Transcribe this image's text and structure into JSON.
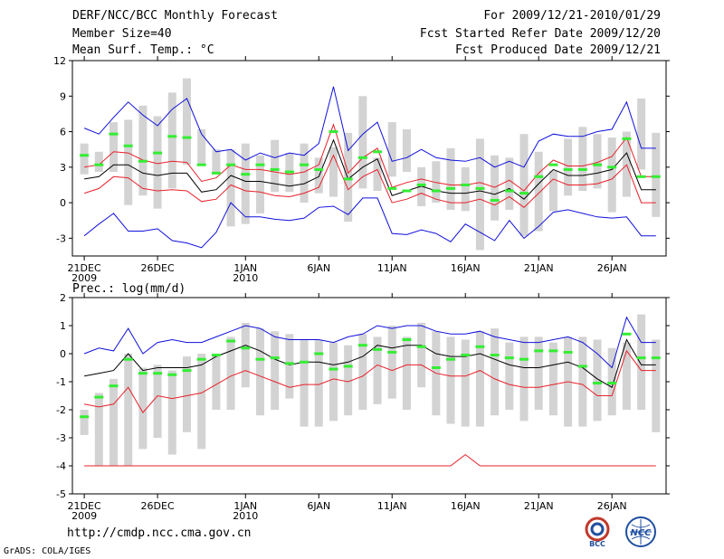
{
  "header": {
    "title": "DERF/NCC/BCC Monthly Forecast",
    "member_size": "Member Size=40",
    "variable": "Mean Surf. Temp.: °C",
    "period": "For 2009/12/21-2010/01/29",
    "fcst_started": "Fcst Started Refer Date 2009/12/20",
    "fcst_produced": "Fcst Produced Date 2009/12/21"
  },
  "footer": {
    "url": "http://cmdp.ncc.cma.gov.cn",
    "credit": "GrADS: COLA/IGES",
    "logo_bcc": "BCC",
    "logo_ncc": "NCC"
  },
  "colors": {
    "box": "#d3d3d3",
    "green": "#33ee33",
    "red": "#e8202a",
    "blue": "#1010dd",
    "mean": "#000000"
  },
  "chart_data": [
    {
      "type": "box-ensemble",
      "title": "",
      "ylabel": "°C",
      "ylim": [
        -4.5,
        12
      ],
      "yticks": [
        12,
        9,
        6,
        3,
        0,
        -3
      ],
      "x_start_day": 1,
      "xticks": [
        {
          "day": 1,
          "label": "21DEC",
          "sub": "2009"
        },
        {
          "day": 6,
          "label": "26DEC",
          "sub": ""
        },
        {
          "day": 12,
          "label": "1JAN",
          "sub": "2010"
        },
        {
          "day": 17,
          "label": "6JAN",
          "sub": ""
        },
        {
          "day": 22,
          "label": "11JAN",
          "sub": ""
        },
        {
          "day": 27,
          "label": "16JAN",
          "sub": ""
        },
        {
          "day": 32,
          "label": "21JAN",
          "sub": ""
        },
        {
          "day": 37,
          "label": "26JAN",
          "sub": ""
        }
      ],
      "box_low": [
        2.4,
        2.6,
        2.6,
        -0.2,
        0.6,
        -0.5,
        1.2,
        3.2,
        3.2,
        2.4,
        -2.0,
        -1.8,
        -0.9,
        0.9,
        0.9,
        0.0,
        0.8,
        0.5,
        -1.6,
        1.2,
        1.0,
        2.2,
        2.6,
        -0.3,
        0.0,
        -0.6,
        -0.7,
        -4.0,
        -1.5,
        -0.6,
        -2.8,
        -2.4,
        -0.7,
        0.6,
        1.0,
        1.2,
        -0.8,
        0.5,
        2.8,
        -1.2
      ],
      "box_high": [
        5.0,
        4.3,
        6.8,
        7.0,
        8.2,
        7.3,
        9.3,
        10.5,
        6.2,
        4.5,
        4.5,
        5.0,
        4.0,
        5.3,
        4.2,
        5.0,
        3.8,
        4.7,
        5.9,
        9.0,
        3.8,
        6.8,
        6.2,
        3.0,
        3.5,
        4.6,
        3.0,
        5.4,
        4.0,
        3.8,
        5.8,
        4.3,
        2.7,
        5.4,
        6.4,
        5.8,
        5.5,
        6.0,
        8.8,
        5.9
      ],
      "green": [
        4.0,
        3.2,
        5.8,
        4.8,
        3.5,
        4.2,
        5.6,
        5.5,
        3.2,
        2.5,
        3.2,
        2.4,
        3.2,
        2.8,
        2.6,
        3.2,
        2.8,
        6.0,
        2.0,
        3.8,
        4.3,
        1.2,
        1.0,
        1.5,
        1.0,
        1.2,
        1.5,
        1.2,
        0.2,
        1.0,
        0.8,
        2.2,
        3.2,
        2.8,
        2.8,
        3.2,
        3.0,
        5.4,
        2.2,
        2.2
      ],
      "mean": [
        2.0,
        2.2,
        3.2,
        3.2,
        2.5,
        2.3,
        2.5,
        2.5,
        0.9,
        1.1,
        2.3,
        1.8,
        1.8,
        1.6,
        1.4,
        1.6,
        2.2,
        5.3,
        2.0,
        3.0,
        3.7,
        0.6,
        1.0,
        1.4,
        1.0,
        0.8,
        0.8,
        1.0,
        0.7,
        1.2,
        0.3,
        1.6,
        2.8,
        2.3,
        2.3,
        2.5,
        2.8,
        4.2,
        1.1,
        1.1
      ],
      "mean_plus_sd": [
        3.0,
        3.2,
        4.3,
        4.2,
        3.6,
        3.3,
        3.5,
        3.4,
        1.8,
        2.1,
        3.2,
        2.8,
        2.8,
        2.6,
        2.4,
        2.6,
        3.2,
        6.6,
        2.5,
        3.8,
        4.6,
        1.3,
        1.7,
        2.0,
        1.7,
        1.5,
        1.5,
        1.7,
        1.3,
        1.9,
        1.0,
        2.5,
        3.6,
        3.1,
        3.1,
        3.4,
        3.9,
        5.5,
        2.2,
        2.2
      ],
      "mean_minus_sd": [
        0.8,
        1.2,
        2.2,
        2.1,
        1.2,
        1.0,
        1.1,
        1.0,
        0.1,
        0.3,
        1.5,
        1.0,
        0.9,
        0.6,
        0.5,
        0.8,
        1.3,
        4.0,
        1.1,
        2.2,
        2.8,
        0.0,
        0.3,
        0.8,
        0.3,
        0.0,
        0.0,
        0.3,
        -0.2,
        0.5,
        -0.4,
        0.8,
        2.0,
        1.5,
        1.5,
        1.6,
        2.0,
        3.2,
        0.0,
        0.0
      ],
      "max": [
        6.3,
        5.8,
        7.2,
        8.5,
        7.4,
        6.5,
        7.9,
        8.8,
        5.8,
        4.3,
        4.5,
        3.6,
        4.2,
        3.8,
        4.2,
        4.0,
        5.0,
        9.8,
        4.4,
        5.8,
        6.8,
        3.5,
        3.8,
        4.5,
        3.8,
        3.6,
        3.5,
        3.8,
        3.0,
        3.5,
        3.0,
        5.2,
        5.8,
        5.6,
        5.6,
        6.0,
        6.2,
        8.5,
        4.6,
        4.6
      ],
      "min": [
        -2.8,
        -1.8,
        -0.9,
        -2.4,
        -2.4,
        -2.2,
        -3.2,
        -3.4,
        -3.8,
        -2.5,
        0.0,
        -1.2,
        -1.2,
        -1.4,
        -1.5,
        -1.3,
        -0.4,
        -0.3,
        -1.0,
        0.4,
        0.4,
        -2.6,
        -2.7,
        -2.3,
        -2.6,
        -3.3,
        -1.8,
        -2.5,
        -3.2,
        -1.5,
        -3.0,
        -2.0,
        -0.8,
        -0.6,
        -0.9,
        -1.2,
        -1.3,
        -1.2,
        -2.8,
        -2.8
      ]
    },
    {
      "type": "box-ensemble",
      "title": "Prec.: log(mm/d)",
      "ylabel": "log(mm/d)",
      "ylim": [
        -5,
        2
      ],
      "yticks": [
        2,
        1,
        0,
        -1,
        -2,
        -3,
        -4,
        -5
      ],
      "x_start_day": 1,
      "xticks": [
        {
          "day": 1,
          "label": "21DEC",
          "sub": "2009"
        },
        {
          "day": 6,
          "label": "26DEC",
          "sub": ""
        },
        {
          "day": 12,
          "label": "1JAN",
          "sub": "2010"
        },
        {
          "day": 17,
          "label": "6JAN",
          "sub": ""
        },
        {
          "day": 22,
          "label": "11JAN",
          "sub": ""
        },
        {
          "day": 27,
          "label": "16JAN",
          "sub": ""
        },
        {
          "day": 32,
          "label": "21JAN",
          "sub": ""
        },
        {
          "day": 37,
          "label": "26JAN",
          "sub": ""
        }
      ],
      "box_low": [
        -2.9,
        -4.0,
        -4.0,
        -4.0,
        -3.4,
        -3.0,
        -3.6,
        -2.8,
        -3.4,
        -2.0,
        -2.0,
        -1.2,
        -2.2,
        -2.0,
        -1.6,
        -2.6,
        -2.6,
        -2.4,
        -2.2,
        -2.0,
        -1.8,
        -1.6,
        -2.0,
        -1.2,
        -2.2,
        -2.5,
        -2.6,
        -2.6,
        -2.2,
        -2.0,
        -2.4,
        -2.0,
        -2.2,
        -2.6,
        -2.6,
        -2.4,
        -2.2,
        -2.0,
        -2.0,
        -2.8
      ],
      "box_high": [
        -2.0,
        -1.4,
        -0.9,
        0.0,
        -0.5,
        -0.4,
        -0.6,
        -0.1,
        0.0,
        0.0,
        0.6,
        1.1,
        0.9,
        0.8,
        0.7,
        0.5,
        0.5,
        0.4,
        0.3,
        0.7,
        0.6,
        1.0,
        0.6,
        1.1,
        0.8,
        0.6,
        0.5,
        0.8,
        0.9,
        0.4,
        0.6,
        0.6,
        0.4,
        0.6,
        0.6,
        0.5,
        0.2,
        0.4,
        1.4,
        0.5
      ],
      "green": [
        -2.25,
        -1.55,
        -1.15,
        -0.2,
        -0.7,
        -0.7,
        -0.75,
        -0.6,
        -0.2,
        -0.05,
        0.45,
        0.2,
        -0.2,
        -0.15,
        -0.35,
        -0.3,
        0.0,
        -0.55,
        -0.45,
        0.3,
        0.15,
        0.05,
        0.5,
        0.25,
        -0.5,
        -0.2,
        -0.05,
        0.25,
        -0.05,
        -0.15,
        -0.2,
        0.1,
        0.1,
        0.05,
        -0.45,
        -1.05,
        -1.05,
        0.7,
        -0.15,
        -0.15
      ],
      "mean": [
        -0.8,
        -0.7,
        -0.6,
        0.0,
        -0.6,
        -0.5,
        -0.5,
        -0.5,
        -0.4,
        -0.1,
        0.1,
        0.3,
        0.1,
        -0.2,
        -0.4,
        -0.3,
        -0.3,
        -0.4,
        -0.3,
        -0.1,
        0.3,
        0.2,
        0.3,
        0.3,
        0.0,
        -0.1,
        -0.1,
        0.0,
        -0.2,
        -0.4,
        -0.5,
        -0.5,
        -0.4,
        -0.3,
        -0.5,
        -0.9,
        -1.2,
        0.5,
        -0.4,
        -0.4
      ],
      "mean_plus_sd": [
        0.0,
        0.2,
        0.1,
        0.9,
        0.0,
        0.4,
        0.5,
        0.4,
        0.4,
        0.6,
        0.8,
        1.0,
        0.9,
        0.6,
        0.5,
        0.5,
        0.5,
        0.4,
        0.6,
        0.7,
        1.0,
        0.9,
        1.0,
        1.0,
        0.8,
        0.7,
        0.7,
        0.8,
        0.6,
        0.5,
        0.4,
        0.4,
        0.5,
        0.6,
        0.4,
        0.0,
        -0.5,
        1.3,
        0.4,
        0.4
      ],
      "mean_minus_sd": [
        -1.8,
        -1.9,
        -1.8,
        -1.2,
        -2.1,
        -1.5,
        -1.6,
        -1.5,
        -1.4,
        -1.1,
        -0.8,
        -0.6,
        -0.8,
        -1.0,
        -1.2,
        -1.1,
        -1.1,
        -0.9,
        -1.0,
        -0.8,
        -0.4,
        -0.6,
        -0.4,
        -0.4,
        -0.7,
        -0.8,
        -0.8,
        -0.6,
        -0.9,
        -1.1,
        -1.2,
        -1.2,
        -1.1,
        -1.0,
        -1.1,
        -1.5,
        -1.5,
        0.1,
        -0.6,
        -0.6
      ],
      "min_line": {
        "value": -4.0,
        "spike_day": 27,
        "spike_value": -3.6
      }
    }
  ]
}
